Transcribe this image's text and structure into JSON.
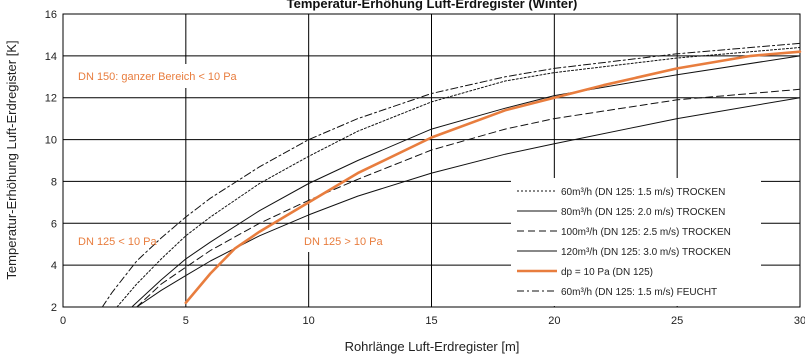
{
  "chart_data": {
    "type": "line",
    "title": "Temperatur-Erhöhung Luft-Erdregister (Winter)",
    "xlabel": "Rohrlänge Luft-Erdregister [m]",
    "ylabel": "Temperatur-Erhöhung Luft-Erdregister [K]",
    "xlim": [
      0,
      30
    ],
    "ylim": [
      2,
      16
    ],
    "xticks": [
      0,
      5,
      10,
      15,
      20,
      25,
      30
    ],
    "yticks": [
      2,
      4,
      6,
      8,
      10,
      12,
      14,
      16
    ],
    "grid": true,
    "legend_position": "right",
    "colors": {
      "accent": "#e87d3e",
      "series": "#111111",
      "grid": "#000000"
    },
    "series": [
      {
        "name": "60m³/h (DN 125: 1.5 m/s) TROCKEN",
        "style": "dotted",
        "x": [
          2.2,
          3,
          4,
          5,
          6,
          8,
          10,
          12,
          15,
          18,
          20,
          25,
          30
        ],
        "y": [
          2.0,
          3.1,
          4.3,
          5.4,
          6.3,
          7.9,
          9.2,
          10.4,
          11.8,
          12.8,
          13.2,
          13.9,
          14.4
        ]
      },
      {
        "name": "80m³/h (DN 125: 2.0 m/s) TROCKEN",
        "style": "solid",
        "x": [
          2.8,
          4,
          5,
          6,
          8,
          10,
          12,
          15,
          18,
          20,
          25,
          30
        ],
        "y": [
          2.0,
          3.3,
          4.3,
          5.1,
          6.6,
          7.9,
          9.0,
          10.5,
          11.5,
          12.1,
          13.1,
          14.0
        ]
      },
      {
        "name": "100m³/h (DN 125: 2.5 m/s) TROCKEN",
        "style": "dashed",
        "x": [
          3.0,
          4,
          5,
          6,
          8,
          10,
          12,
          15,
          18,
          20,
          25,
          30
        ],
        "y": [
          2.0,
          3.1,
          3.9,
          4.7,
          6.0,
          7.1,
          8.1,
          9.5,
          10.5,
          11.0,
          11.9,
          12.4
        ]
      },
      {
        "name": "120m³/h (DN 125: 3.0 m/s) TROCKEN",
        "style": "solid",
        "x": [
          3.0,
          4,
          5,
          6,
          8,
          10,
          12,
          15,
          18,
          20,
          25,
          30
        ],
        "y": [
          2.0,
          2.8,
          3.5,
          4.2,
          5.4,
          6.4,
          7.3,
          8.4,
          9.3,
          9.8,
          11.0,
          12.0
        ]
      },
      {
        "name": "dp = 10 Pa (DN 125)",
        "style": "thick-orange",
        "x": [
          5,
          6,
          7,
          8,
          9,
          10,
          12,
          15,
          18,
          20,
          22,
          25,
          28,
          30
        ],
        "y": [
          2.2,
          3.6,
          4.8,
          5.6,
          6.3,
          7.0,
          8.4,
          10.1,
          11.4,
          12.0,
          12.6,
          13.4,
          14.0,
          14.2
        ]
      },
      {
        "name": "60m³/h (DN 125: 1.5 m/s) FEUCHT",
        "style": "dashdot",
        "x": [
          1.6,
          2,
          3,
          4,
          5,
          6,
          8,
          10,
          12,
          15,
          18,
          20,
          25,
          30
        ],
        "y": [
          2.0,
          2.7,
          4.2,
          5.3,
          6.3,
          7.2,
          8.7,
          10.0,
          11.0,
          12.2,
          13.0,
          13.4,
          14.1,
          14.6
        ]
      }
    ],
    "annotations": [
      {
        "text": "DN 150: ganzer Bereich < 10 Pa",
        "color": "#e87d3e"
      },
      {
        "text": "DN 125 < 10  Pa",
        "color": "#e87d3e"
      },
      {
        "text": "DN 125 > 10  Pa",
        "color": "#e87d3e"
      }
    ]
  }
}
